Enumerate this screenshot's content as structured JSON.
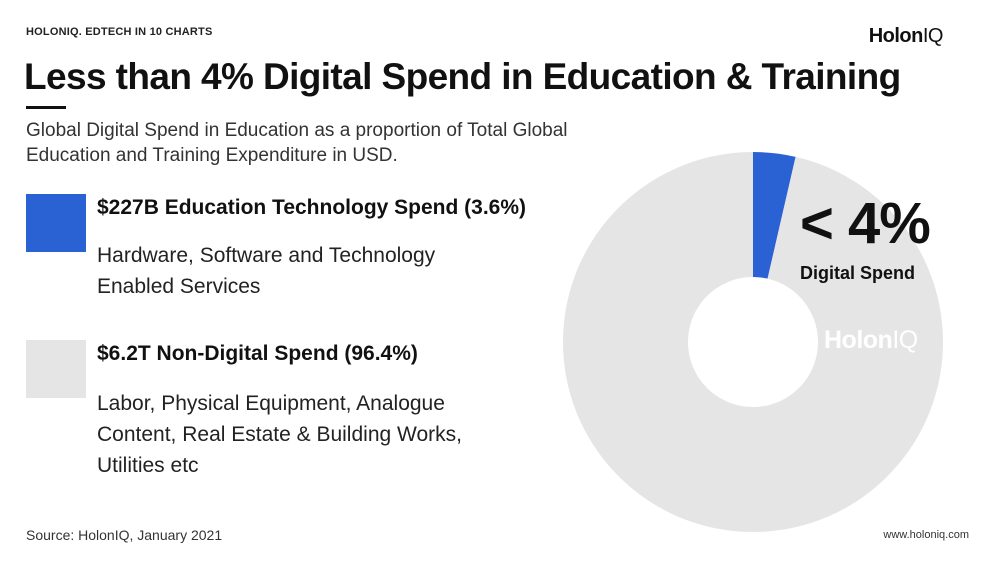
{
  "header": {
    "tag": "HOLONIQ. EDTECH IN 10 CHARTS",
    "brand_main": "Holon",
    "brand_suffix": "IQ"
  },
  "title": "Less than 4% Digital Spend in Education & Training",
  "subtitle": "Global Digital Spend in Education as a proportion of Total Global Education and Training Expenditure in USD.",
  "legend": {
    "digital": {
      "heading": "$227B Education Technology Spend (3.6%)",
      "description": "Hardware, Software and Technology Enabled Services"
    },
    "non_digital": {
      "heading": "$6.2T Non-Digital Spend (96.4%)",
      "description": "Labor, Physical Equipment, Analogue Content, Real Estate & Building Works, Utilities etc"
    }
  },
  "callout": {
    "big": "< 4%",
    "sub": "Digital Spend"
  },
  "watermark": {
    "main": "Holon",
    "suffix": "IQ"
  },
  "footer": {
    "source": "Source: HolonIQ, January 2021",
    "website": "www.holoniq.com"
  },
  "colors": {
    "digital": "#2b62d3",
    "non_digital": "#e6e5e5"
  },
  "chart_data": {
    "type": "pie",
    "style": "donut",
    "categories": [
      "Education Technology Spend",
      "Non-Digital Spend"
    ],
    "values": [
      3.6,
      96.4
    ],
    "amounts": [
      "$227B",
      "$6.2T"
    ],
    "unit": "%"
  }
}
